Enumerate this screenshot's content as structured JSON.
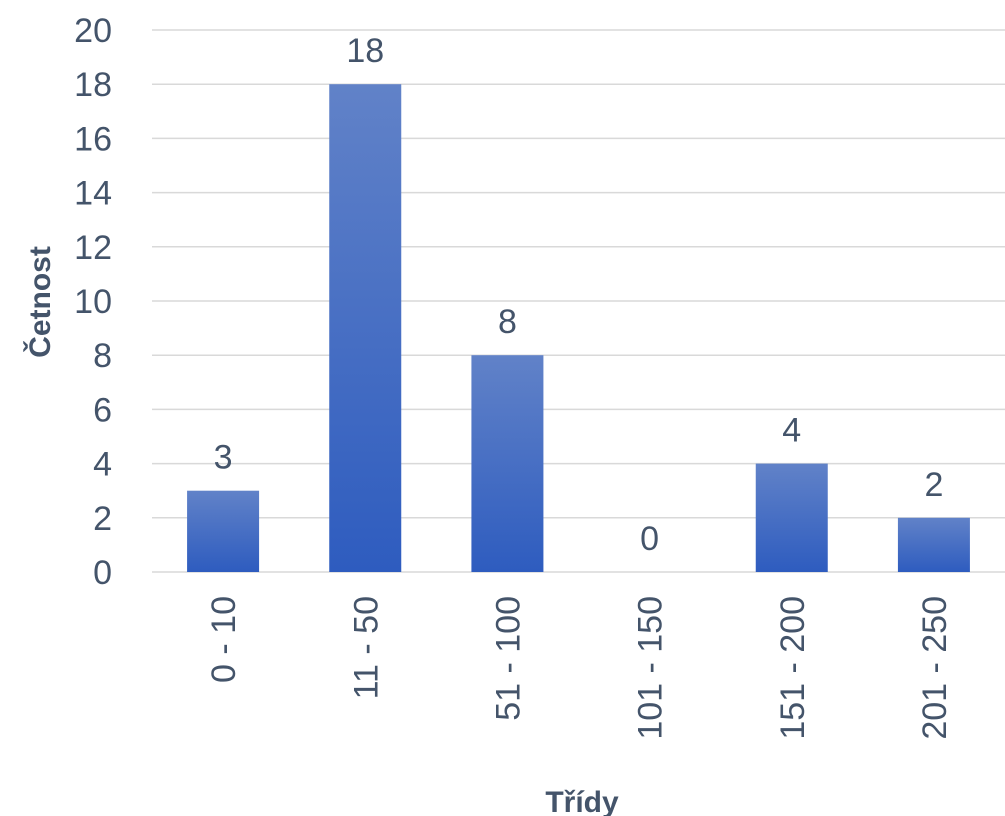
{
  "chart_data": {
    "type": "bar",
    "categories": [
      "0 - 10",
      "11 - 50",
      "51 - 100",
      "101 - 150",
      "151 - 200",
      "201 - 250"
    ],
    "values": [
      3,
      18,
      8,
      0,
      4,
      2
    ],
    "data_labels": [
      "3",
      "18",
      "8",
      "0",
      "4",
      "2"
    ],
    "xlabel": "Třídy",
    "ylabel": "Četnost",
    "ylim": [
      0,
      20
    ],
    "yticks": [
      "0",
      "2",
      "4",
      "6",
      "8",
      "10",
      "12",
      "14",
      "16",
      "18",
      "20"
    ],
    "grid": true,
    "legend": "none",
    "bar_color_top": "#6182c8",
    "bar_color_bottom": "#2e5cbf",
    "text_color": "#44546a",
    "grid_color": "#d9d9d9"
  }
}
